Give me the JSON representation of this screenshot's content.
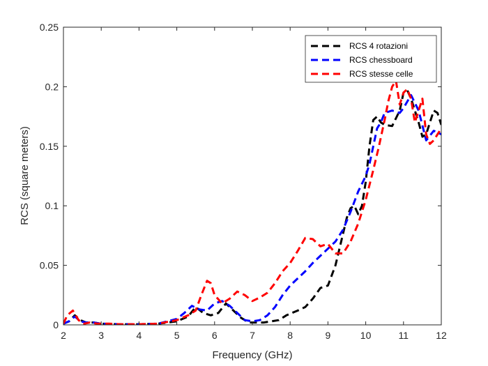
{
  "chart_data": {
    "type": "line",
    "title": "",
    "xlabel": "Frequency (GHz)",
    "ylabel": "RCS (square meters)",
    "xlim": [
      2,
      12
    ],
    "ylim": [
      0,
      0.25
    ],
    "xticks": [
      2,
      3,
      4,
      5,
      6,
      7,
      8,
      9,
      10,
      11,
      12
    ],
    "xtick_labels": [
      "2",
      "3",
      "4",
      "5",
      "6",
      "7",
      "8",
      "9",
      "10",
      "11",
      "12"
    ],
    "yticks": [
      0,
      0.05,
      0.1,
      0.15,
      0.2,
      0.25
    ],
    "ytick_labels": [
      "0",
      "0.05",
      "0.1",
      "0.15",
      "0.2",
      "0.25"
    ],
    "grid": false,
    "legend_position": "top-right",
    "series": [
      {
        "name": "RCS 4 rotazioni",
        "color": "#000000",
        "x": [
          2,
          2.15,
          2.3,
          2.45,
          2.6,
          2.8,
          3,
          3.5,
          4,
          4.5,
          5,
          5.3,
          5.5,
          5.7,
          5.9,
          6.1,
          6.3,
          6.5,
          6.7,
          6.9,
          7.1,
          7.3,
          7.5,
          7.7,
          7.9,
          8.2,
          8.4,
          8.6,
          8.8,
          9.0,
          9.2,
          9.35,
          9.5,
          9.6,
          9.7,
          9.8,
          9.9,
          10.0,
          10.1,
          10.2,
          10.3,
          10.4,
          10.5,
          10.7,
          10.9,
          11.0,
          11.1,
          11.2,
          11.3,
          11.4,
          11.5,
          11.6,
          11.7,
          11.8,
          11.9,
          12.0
        ],
        "y": [
          0.001,
          0.003,
          0.008,
          0.004,
          0.002,
          0.002,
          0.001,
          0.0005,
          0.0005,
          0.001,
          0.003,
          0.007,
          0.015,
          0.01,
          0.008,
          0.01,
          0.018,
          0.012,
          0.006,
          0.002,
          0.002,
          0.002,
          0.003,
          0.004,
          0.008,
          0.012,
          0.015,
          0.022,
          0.031,
          0.033,
          0.05,
          0.07,
          0.09,
          0.098,
          0.1,
          0.093,
          0.1,
          0.12,
          0.15,
          0.172,
          0.175,
          0.17,
          0.168,
          0.167,
          0.18,
          0.195,
          0.197,
          0.19,
          0.18,
          0.17,
          0.158,
          0.16,
          0.17,
          0.18,
          0.178,
          0.168
        ]
      },
      {
        "name": "RCS chessboard",
        "color": "#0000ff",
        "x": [
          2,
          2.15,
          2.3,
          2.45,
          2.6,
          2.8,
          3,
          3.5,
          4,
          4.5,
          5,
          5.2,
          5.4,
          5.6,
          5.8,
          6.0,
          6.2,
          6.4,
          6.6,
          6.8,
          7.0,
          7.2,
          7.4,
          7.6,
          7.8,
          8.0,
          8.2,
          8.4,
          8.6,
          8.8,
          9.0,
          9.2,
          9.4,
          9.6,
          9.8,
          10.0,
          10.1,
          10.2,
          10.3,
          10.4,
          10.5,
          10.7,
          10.9,
          11.0,
          11.2,
          11.4,
          11.6,
          11.8,
          12.0
        ],
        "y": [
          0.001,
          0.003,
          0.007,
          0.003,
          0.002,
          0.002,
          0.001,
          0.0005,
          0.0005,
          0.001,
          0.005,
          0.01,
          0.016,
          0.013,
          0.012,
          0.018,
          0.02,
          0.016,
          0.01,
          0.004,
          0.003,
          0.004,
          0.008,
          0.015,
          0.025,
          0.033,
          0.039,
          0.045,
          0.052,
          0.058,
          0.064,
          0.07,
          0.08,
          0.095,
          0.112,
          0.125,
          0.135,
          0.15,
          0.165,
          0.17,
          0.178,
          0.18,
          0.178,
          0.182,
          0.193,
          0.18,
          0.155,
          0.163,
          0.16
        ]
      },
      {
        "name": "RCS stesse celle",
        "color": "#ff0000",
        "x": [
          2,
          2.1,
          2.25,
          2.4,
          2.55,
          2.7,
          2.9,
          3.2,
          3.5,
          4,
          4.5,
          5,
          5.3,
          5.5,
          5.65,
          5.8,
          5.9,
          6.0,
          6.2,
          6.4,
          6.6,
          6.8,
          7.0,
          7.2,
          7.4,
          7.6,
          7.8,
          8.0,
          8.2,
          8.4,
          8.6,
          8.8,
          9.0,
          9.2,
          9.4,
          9.6,
          9.8,
          10.0,
          10.2,
          10.35,
          10.5,
          10.6,
          10.7,
          10.8,
          10.9,
          11.0,
          11.1,
          11.2,
          11.3,
          11.4,
          11.5,
          11.6,
          11.7,
          11.8,
          11.9,
          12.0
        ],
        "y": [
          0.001,
          0.008,
          0.012,
          0.004,
          0.001,
          0.002,
          0.001,
          0.001,
          0.0005,
          0.0005,
          0.001,
          0.004,
          0.008,
          0.012,
          0.025,
          0.037,
          0.035,
          0.025,
          0.018,
          0.022,
          0.028,
          0.025,
          0.02,
          0.023,
          0.027,
          0.035,
          0.045,
          0.052,
          0.062,
          0.073,
          0.072,
          0.066,
          0.068,
          0.06,
          0.06,
          0.07,
          0.085,
          0.105,
          0.13,
          0.15,
          0.172,
          0.188,
          0.2,
          0.205,
          0.185,
          0.195,
          0.198,
          0.19,
          0.17,
          0.18,
          0.19,
          0.16,
          0.152,
          0.155,
          0.16,
          0.165
        ]
      }
    ]
  }
}
